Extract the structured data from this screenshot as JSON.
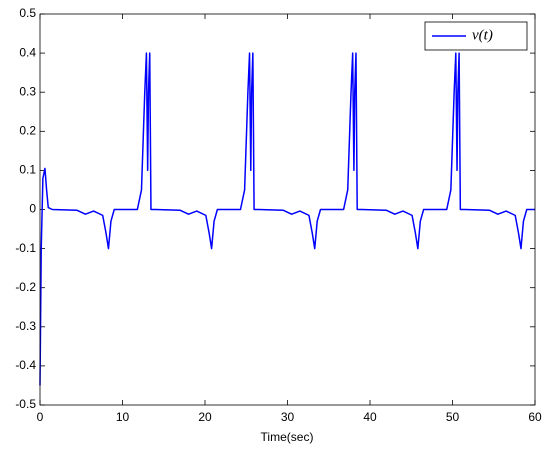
{
  "chart_data": {
    "type": "line",
    "xlabel": "Time(sec)",
    "x": [
      0,
      0.15,
      0.35,
      0.6,
      0.8,
      1.0,
      1.5,
      4.5,
      5.5,
      6.5,
      7.6,
      8.0,
      8.3,
      8.6,
      9.0,
      11.8,
      12.3,
      12.7,
      12.9,
      13.05,
      13.15,
      13.3,
      13.45,
      14.0,
      17.0,
      18.0,
      19.0,
      20.1,
      20.5,
      20.8,
      21.1,
      21.5,
      24.3,
      24.8,
      25.2,
      25.4,
      25.55,
      25.65,
      25.8,
      25.95,
      26.5,
      29.5,
      30.5,
      31.5,
      32.6,
      33.0,
      33.3,
      33.6,
      34.0,
      36.8,
      37.3,
      37.7,
      37.9,
      38.05,
      38.15,
      38.3,
      38.45,
      39.0,
      42.0,
      43.0,
      44.0,
      45.1,
      45.5,
      45.8,
      46.1,
      46.5,
      49.3,
      49.8,
      50.2,
      50.4,
      50.55,
      50.65,
      50.8,
      50.95,
      51.5,
      54.5,
      55.5,
      56.5,
      57.6,
      58.0,
      58.3,
      58.6,
      59.0,
      60
    ],
    "series": [
      {
        "name": "v(t)",
        "color": "#0000ff",
        "values": [
          -0.45,
          -0.1,
          0.08,
          0.105,
          0.05,
          0.005,
          0,
          -0.002,
          -0.012,
          -0.004,
          -0.015,
          -0.06,
          -0.1,
          -0.03,
          0,
          0,
          0.05,
          0.3,
          0.4,
          0.1,
          0.3,
          0.4,
          0,
          0,
          -0.002,
          -0.012,
          -0.004,
          -0.015,
          -0.06,
          -0.1,
          -0.03,
          0,
          0,
          0.05,
          0.3,
          0.4,
          0.1,
          0.3,
          0.4,
          0,
          0,
          -0.002,
          -0.012,
          -0.004,
          -0.015,
          -0.06,
          -0.1,
          -0.03,
          0,
          0,
          0.05,
          0.3,
          0.4,
          0.1,
          0.3,
          0.4,
          0,
          0,
          -0.002,
          -0.012,
          -0.004,
          -0.015,
          -0.06,
          -0.1,
          -0.03,
          0,
          0,
          0.05,
          0.3,
          0.4,
          0.1,
          0.3,
          0.4,
          0,
          0,
          -0.002,
          -0.012,
          -0.004,
          -0.015,
          -0.06,
          -0.1,
          -0.03,
          0,
          0
        ]
      }
    ],
    "xlim": [
      0,
      60
    ],
    "xticks": [
      0,
      10,
      20,
      30,
      40,
      50,
      60
    ],
    "ylim": [
      -0.5,
      0.5
    ],
    "yticks": [
      -0.5,
      -0.4,
      -0.3,
      -0.2,
      -0.1,
      0,
      0.1,
      0.2,
      0.3,
      0.4,
      0.5
    ],
    "legend": "top-right"
  }
}
